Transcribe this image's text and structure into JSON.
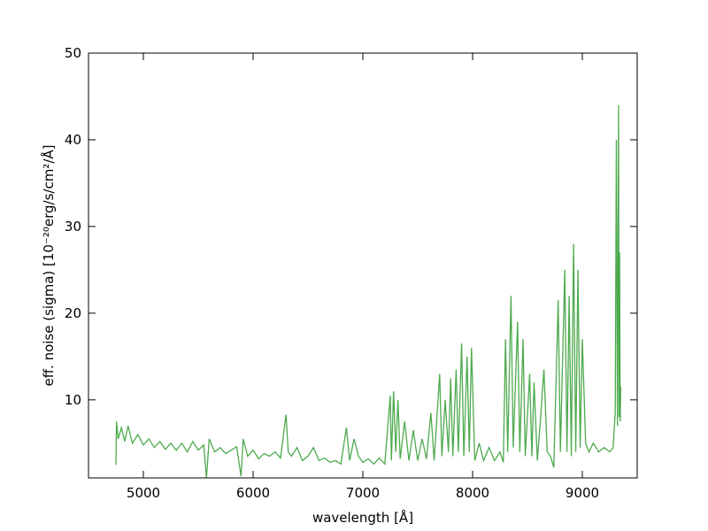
{
  "chart_data": {
    "type": "line",
    "xlabel": "wavelength [Å]",
    "ylabel": "eff. noise  (sigma)  [10⁻²⁰erg/s/cm²/Å]",
    "xlim": [
      4500,
      9500
    ],
    "xticks": [
      5000,
      6000,
      7000,
      8000,
      9000
    ],
    "ylim": [
      1,
      50
    ],
    "yticks": [
      10,
      20,
      30,
      40,
      50
    ],
    "series": [
      {
        "color": "#4daa4d",
        "x": [
          4750,
          4755,
          4770,
          4800,
          4830,
          4860,
          4900,
          4950,
          5000,
          5050,
          5100,
          5150,
          5200,
          5250,
          5300,
          5350,
          5400,
          5450,
          5500,
          5550,
          5575,
          5600,
          5650,
          5700,
          5750,
          5800,
          5850,
          5890,
          5910,
          5950,
          6000,
          6050,
          6100,
          6150,
          6200,
          6250,
          6300,
          6320,
          6350,
          6400,
          6450,
          6500,
          6550,
          6600,
          6650,
          6700,
          6750,
          6800,
          6850,
          6880,
          6920,
          6960,
          7000,
          7050,
          7100,
          7150,
          7200,
          7250,
          7260,
          7280,
          7300,
          7320,
          7340,
          7380,
          7420,
          7460,
          7500,
          7540,
          7580,
          7620,
          7650,
          7700,
          7720,
          7750,
          7780,
          7800,
          7820,
          7850,
          7870,
          7900,
          7920,
          7950,
          7970,
          7990,
          8020,
          8060,
          8100,
          8150,
          8200,
          8250,
          8280,
          8300,
          8320,
          8350,
          8370,
          8410,
          8430,
          8460,
          8480,
          8520,
          8540,
          8560,
          8590,
          8620,
          8650,
          8680,
          8710,
          8740,
          8780,
          8800,
          8840,
          8860,
          8880,
          8900,
          8920,
          8940,
          8960,
          8980,
          9000,
          9030,
          9060,
          9100,
          9150,
          9200,
          9250,
          9280,
          9300,
          9310,
          9320,
          9330,
          9335,
          9340,
          9345,
          9350
        ],
        "values": [
          2.5,
          7.5,
          5.5,
          6.8,
          5.2,
          7.0,
          5.0,
          6.0,
          4.8,
          5.5,
          4.5,
          5.2,
          4.3,
          5.0,
          4.2,
          5.0,
          4.0,
          5.2,
          4.2,
          4.8,
          1.0,
          5.5,
          4.0,
          4.5,
          3.8,
          4.2,
          4.6,
          1.2,
          5.5,
          3.5,
          4.2,
          3.2,
          3.8,
          3.5,
          4.0,
          3.3,
          8.3,
          4.0,
          3.5,
          4.5,
          3.0,
          3.5,
          4.5,
          3.0,
          3.3,
          2.8,
          3.0,
          2.6,
          6.8,
          3.0,
          5.5,
          3.5,
          2.8,
          3.2,
          2.6,
          3.3,
          2.6,
          10.5,
          3.0,
          11.0,
          4.0,
          10.0,
          3.2,
          7.5,
          3.0,
          6.5,
          3.0,
          5.5,
          3.2,
          8.5,
          3.0,
          13.0,
          3.5,
          10.0,
          4.0,
          12.5,
          3.5,
          13.5,
          4.0,
          16.5,
          3.5,
          15.0,
          4.0,
          16.0,
          3.0,
          5.0,
          3.0,
          4.5,
          3.0,
          4.0,
          2.8,
          17.0,
          4.0,
          22.0,
          4.5,
          19.0,
          4.0,
          17.0,
          3.5,
          13.0,
          3.5,
          12.0,
          3.0,
          8.0,
          13.5,
          4.0,
          3.5,
          2.2,
          21.5,
          4.0,
          25.0,
          4.0,
          22.0,
          3.5,
          28.0,
          4.0,
          25.0,
          4.5,
          17.0,
          5.0,
          4.0,
          5.0,
          4.0,
          4.5,
          4.0,
          4.5,
          8.5,
          40.0,
          7.0,
          44.0,
          8.0,
          27.0,
          7.5,
          11.5
        ]
      }
    ]
  }
}
